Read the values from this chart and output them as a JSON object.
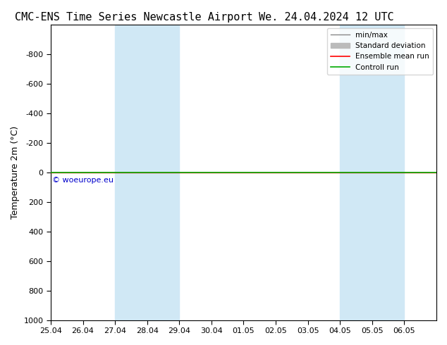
{
  "title_left": "CMC-ENS Time Series Newcastle Airport",
  "title_right": "We. 24.04.2024 12 UTC",
  "ylabel": "Temperature 2m (°C)",
  "ylim_top": -1000,
  "ylim_bottom": 1000,
  "yticks": [
    -800,
    -600,
    -400,
    -200,
    0,
    200,
    400,
    600,
    800,
    1000
  ],
  "xlim": [
    0,
    12
  ],
  "x_tick_positions": [
    0,
    1,
    2,
    3,
    4,
    5,
    6,
    7,
    8,
    9,
    10,
    11
  ],
  "x_tick_labels": [
    "25.04",
    "26.04",
    "27.04",
    "28.04",
    "29.04",
    "30.04",
    "01.05",
    "02.05",
    "03.05",
    "04.05",
    "05.05",
    "06.05"
  ],
  "shade_bands": [
    {
      "x_start": 2,
      "x_end": 4
    },
    {
      "x_start": 9,
      "x_end": 11
    }
  ],
  "control_run_y": 0,
  "control_run_color": "#00aa00",
  "ensemble_mean_color": "#ff0000",
  "minmax_color": "#888888",
  "stddev_color": "#bbbbbb",
  "shade_color": "#d0e8f5",
  "watermark": "© woeurope.eu",
  "watermark_color": "#0000cc",
  "bg_color": "#ffffff",
  "plot_bg_color": "#ffffff",
  "title_fontsize": 11,
  "label_fontsize": 9,
  "tick_fontsize": 8
}
